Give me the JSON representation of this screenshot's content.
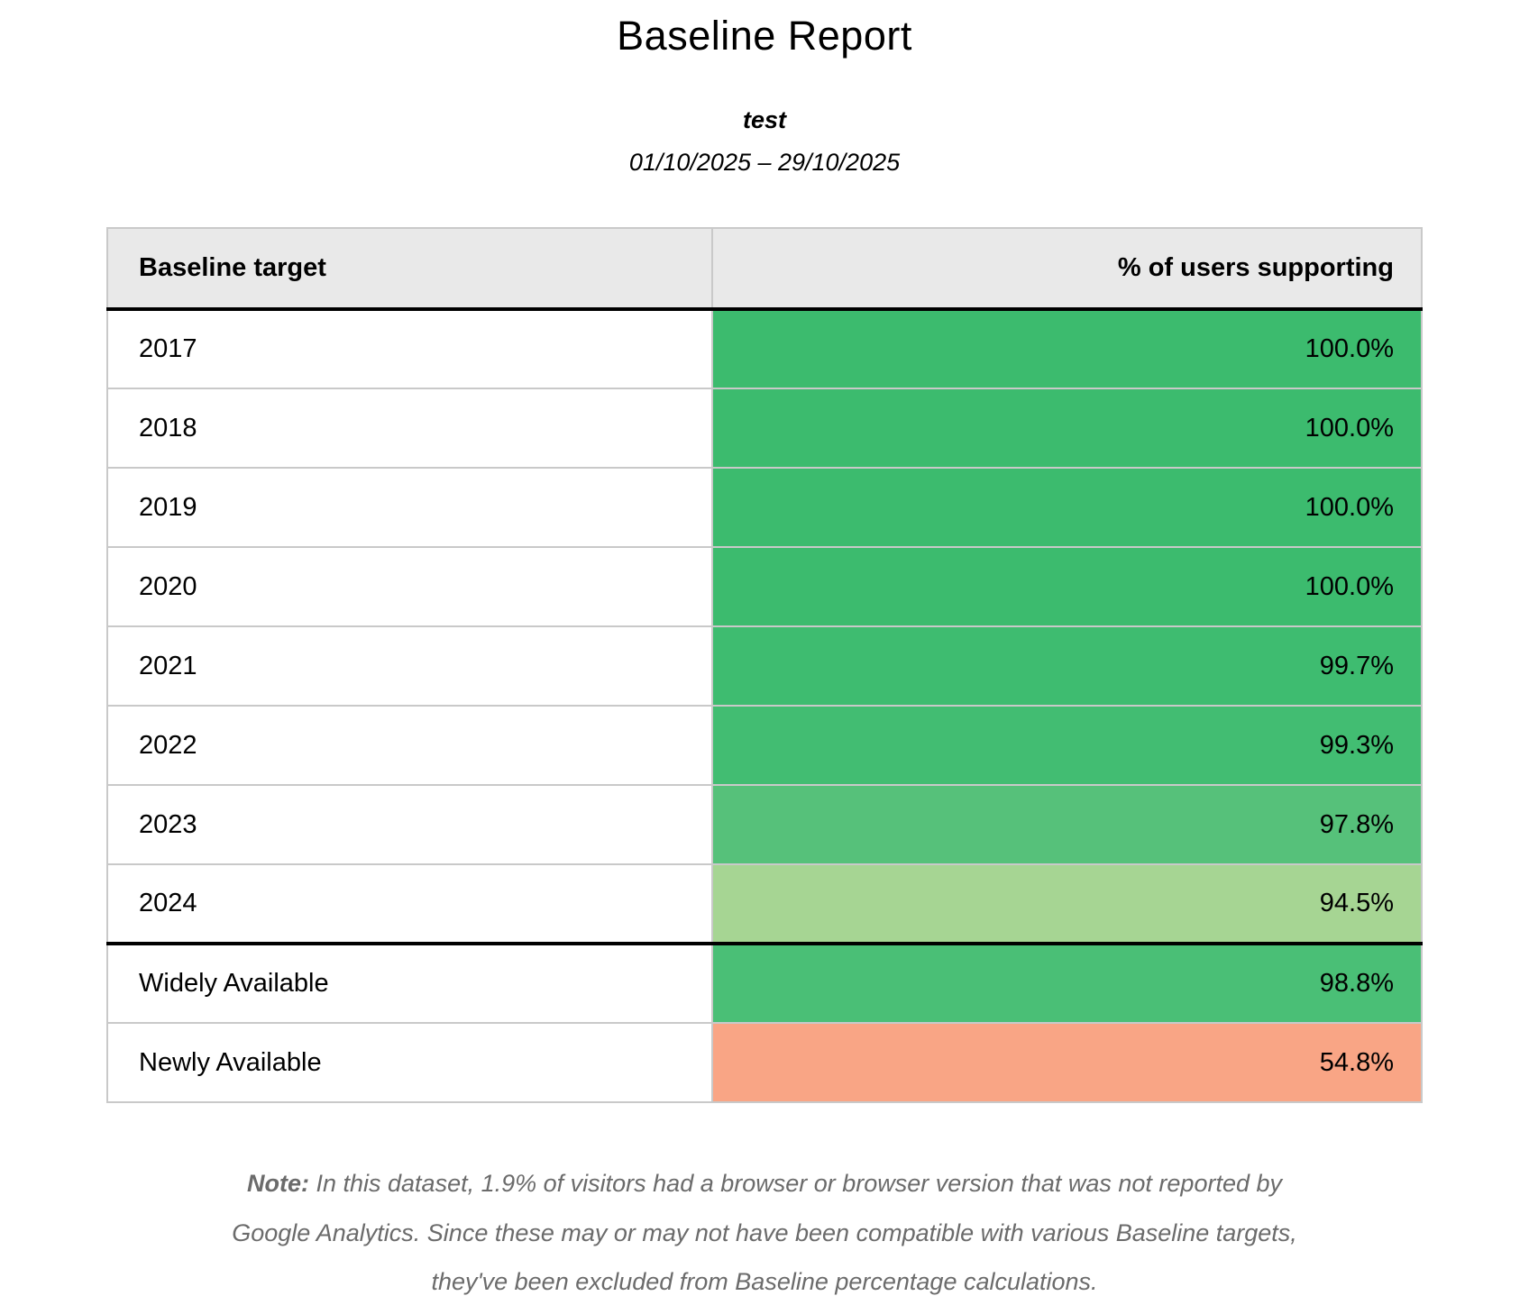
{
  "report": {
    "title": "Baseline Report",
    "subtitle": "test",
    "date_range": "01/10/2025 – 29/10/2025"
  },
  "table": {
    "columns": [
      "Baseline target",
      "% of users supporting"
    ],
    "rows": [
      {
        "target": "2017",
        "value": "100.0%",
        "color": "#3cbb6e"
      },
      {
        "target": "2018",
        "value": "100.0%",
        "color": "#3cbb6e"
      },
      {
        "target": "2019",
        "value": "100.0%",
        "color": "#3cbb6e"
      },
      {
        "target": "2020",
        "value": "100.0%",
        "color": "#3cbb6e"
      },
      {
        "target": "2021",
        "value": "99.7%",
        "color": "#3ebc70"
      },
      {
        "target": "2022",
        "value": "99.3%",
        "color": "#42bd72"
      },
      {
        "target": "2023",
        "value": "97.8%",
        "color": "#56c17a"
      },
      {
        "target": "2024",
        "value": "94.5%",
        "color": "#a6d593"
      },
      {
        "target": "Widely Available",
        "value": "98.8%",
        "color": "#4abf76"
      },
      {
        "target": "Newly Available",
        "value": "54.8%",
        "color": "#f9a585"
      }
    ]
  },
  "note": {
    "label": "Note:",
    "text": "In this dataset, 1.9% of visitors had a browser or browser version that was not reported by Google Analytics. Since these may or may not have been compatible with various Baseline targets, they've been excluded from Baseline percentage calculations."
  },
  "colors": {
    "header_bg": "#e9e9e9",
    "grid_line": "#c9c9c9",
    "group_divider": "#000000",
    "note_text": "#6b6b6b"
  }
}
